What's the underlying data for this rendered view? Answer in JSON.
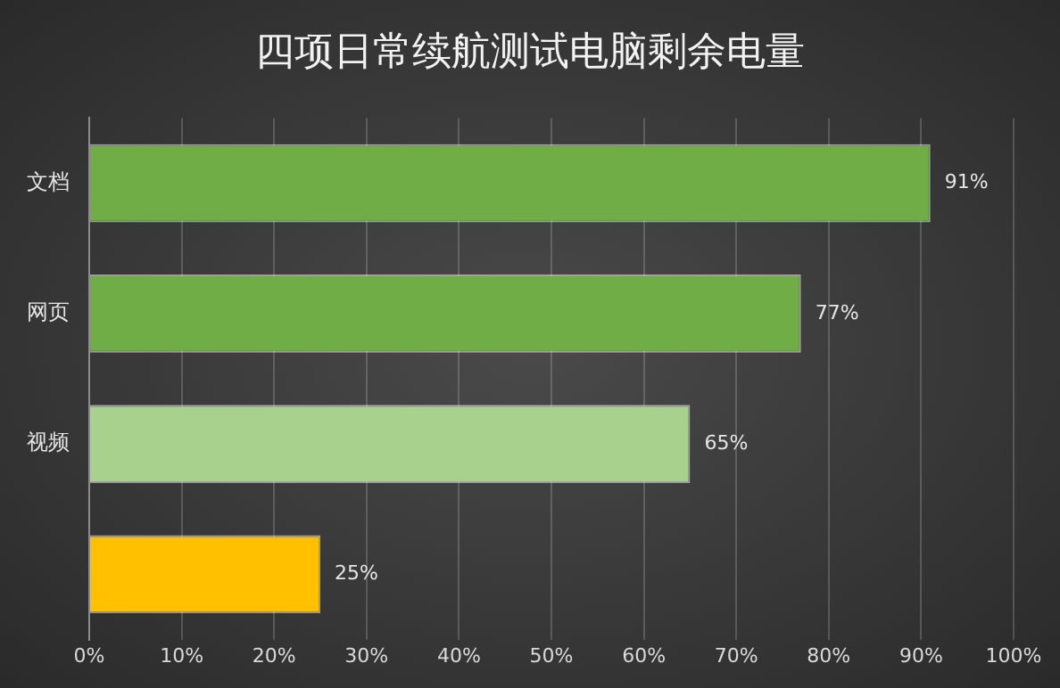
{
  "chart_data": {
    "type": "bar",
    "orientation": "horizontal",
    "title": "四项日常续航测试电脑剩余电量",
    "categories": [
      "文档",
      "网页",
      "视频",
      null
    ],
    "values": [
      91,
      77,
      65,
      25
    ],
    "colors": [
      "#70ad47",
      "#70ad47",
      "#a9d18e",
      "#ffc000"
    ],
    "value_labels": [
      "91%",
      "77%",
      "65%",
      "25%"
    ],
    "xlim": [
      0,
      100
    ],
    "xticks": [
      {
        "value": 0,
        "label": "0%"
      },
      {
        "value": 10,
        "label": "10%"
      },
      {
        "value": 20,
        "label": "20%"
      },
      {
        "value": 30,
        "label": "30%"
      },
      {
        "value": 40,
        "label": "40%"
      },
      {
        "value": 50,
        "label": "50%"
      },
      {
        "value": 60,
        "label": "60%"
      },
      {
        "value": 70,
        "label": "70%"
      },
      {
        "value": 80,
        "label": "80%"
      },
      {
        "value": 90,
        "label": "90%"
      },
      {
        "value": 100,
        "label": "100%"
      }
    ],
    "grid": "x"
  }
}
